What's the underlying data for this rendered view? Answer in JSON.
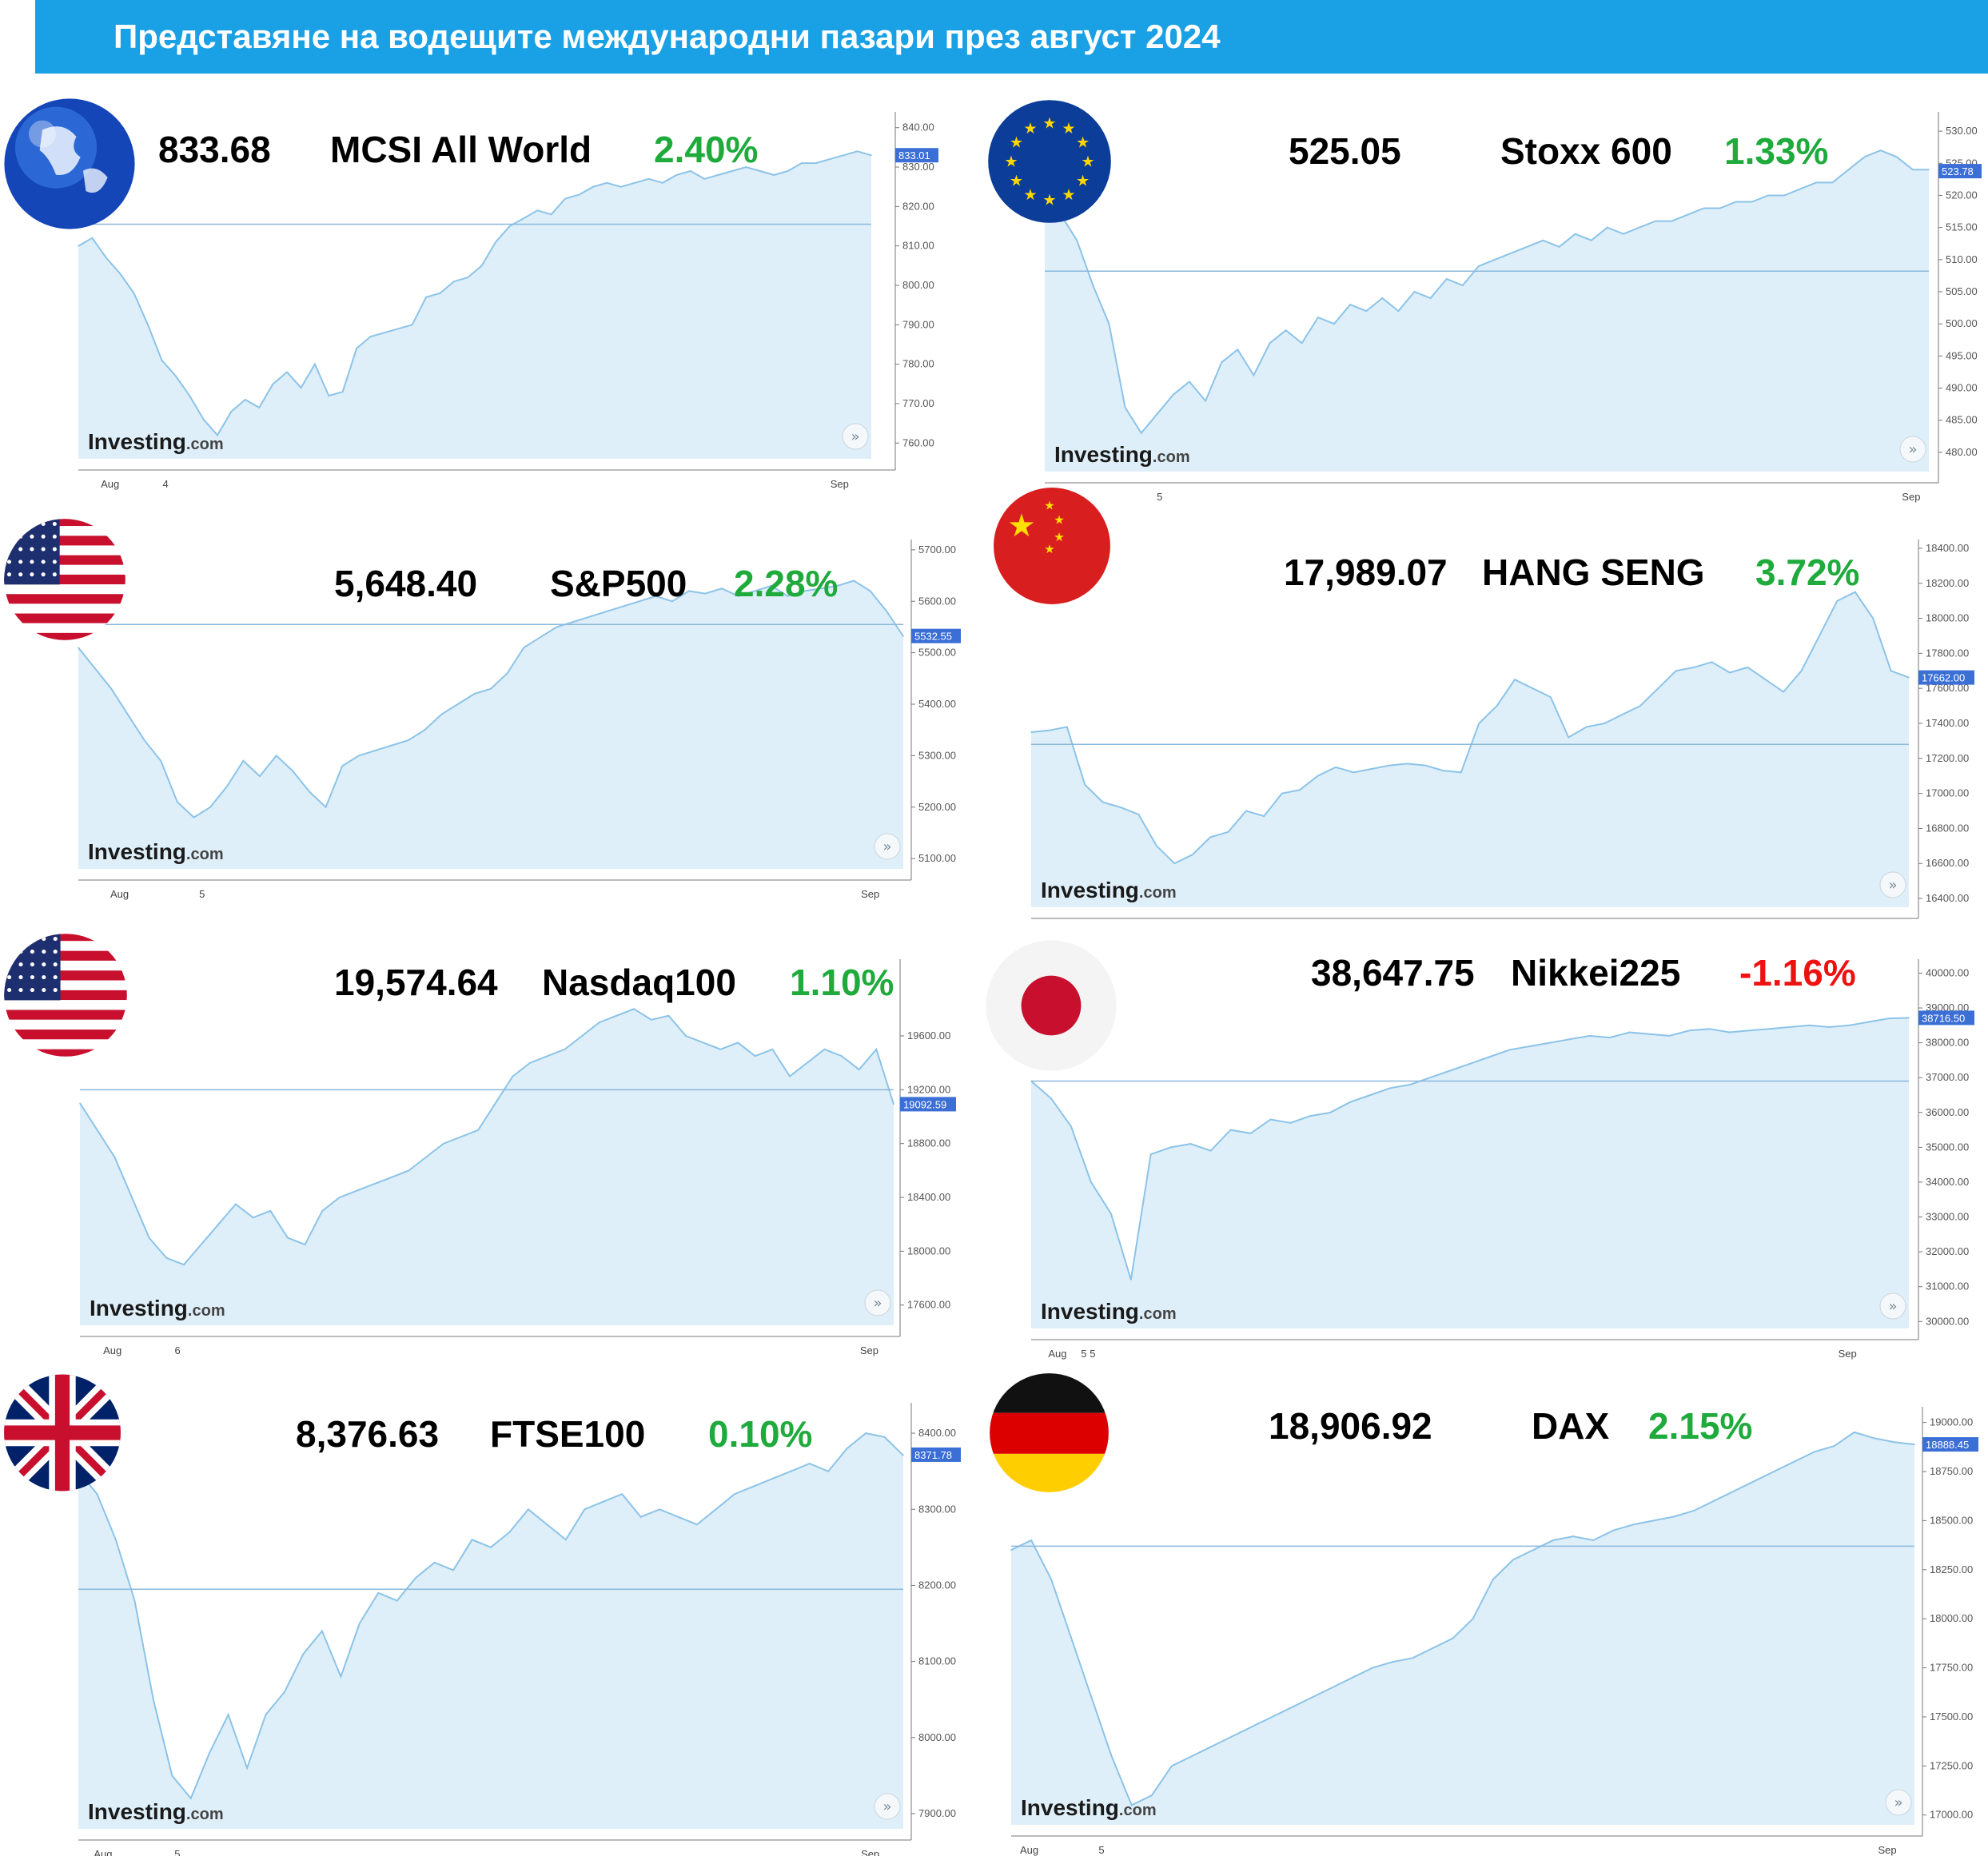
{
  "title": "Представяне на водещите международни пазари през август 2024",
  "source_logo": "Investing.com",
  "colors": {
    "title_bar": "#1aa0e4",
    "positive": "#1faa3c",
    "negative": "#ee1111",
    "area_fill": "#deeff9",
    "line": "#8cc3e8",
    "ref_line": "#8bb8dc",
    "last_box": "#3b6fd6"
  },
  "markets": [
    {
      "id": "msci",
      "flag": "globe-icon",
      "value": "833.68",
      "name": "MCSI All World",
      "change": "2.40%",
      "last_label": "833.01",
      "x_labels": [
        "Aug",
        "4",
        "Sep"
      ],
      "chart_data": {
        "type": "area",
        "y_ticks": [
          840,
          830,
          820,
          810,
          800,
          790,
          780,
          770,
          760
        ],
        "ylim": [
          756,
          844
        ],
        "reference": 815.5,
        "last": 833.01,
        "values": [
          810,
          812,
          807,
          803,
          798,
          790,
          781,
          777,
          772,
          766,
          762,
          768,
          771,
          769,
          775,
          778,
          774,
          780,
          772,
          773,
          784,
          787,
          788,
          789,
          790,
          797,
          798,
          801,
          802,
          805,
          811,
          815,
          817,
          819,
          818,
          822,
          823,
          825,
          826,
          825,
          826,
          827,
          826,
          828,
          829,
          827,
          828,
          829,
          830,
          829,
          828,
          829,
          831,
          831,
          832,
          833,
          834,
          833
        ]
      }
    },
    {
      "id": "stoxx",
      "flag": "eu-flag-icon",
      "value": "525.05",
      "name": "Stoxx 600",
      "change": "1.33%",
      "last_label": "523.78",
      "x_labels": [
        "5",
        "Sep"
      ],
      "chart_data": {
        "type": "area",
        "y_ticks": [
          530,
          525,
          520,
          515,
          510,
          505,
          500,
          495,
          490,
          485,
          480
        ],
        "ylim": [
          477,
          533
        ],
        "reference": 508.2,
        "last": 523.78,
        "values": [
          519,
          517,
          513,
          506,
          500,
          487,
          483,
          486,
          489,
          491,
          488,
          494,
          496,
          492,
          497,
          499,
          497,
          501,
          500,
          503,
          502,
          504,
          502,
          505,
          504,
          507,
          506,
          509,
          510,
          511,
          512,
          513,
          512,
          514,
          513,
          515,
          514,
          515,
          516,
          516,
          517,
          518,
          518,
          519,
          519,
          520,
          520,
          521,
          522,
          522,
          524,
          526,
          527,
          526,
          524,
          524
        ]
      }
    },
    {
      "id": "sp500",
      "flag": "us-flag-icon",
      "value": "5,648.40",
      "name": "S&P500",
      "change": "2.28%",
      "last_label": "5532.55",
      "x_labels": [
        "Aug",
        "5",
        "Sep"
      ],
      "chart_data": {
        "type": "area",
        "y_ticks": [
          5700,
          5600,
          5500,
          5400,
          5300,
          5200,
          5100
        ],
        "ylim": [
          5080,
          5720
        ],
        "reference": 5555,
        "last": 5532.55,
        "values": [
          5510,
          5470,
          5430,
          5380,
          5330,
          5290,
          5210,
          5180,
          5200,
          5240,
          5290,
          5260,
          5300,
          5270,
          5230,
          5200,
          5280,
          5300,
          5310,
          5320,
          5330,
          5350,
          5380,
          5400,
          5420,
          5430,
          5460,
          5510,
          5530,
          5550,
          5560,
          5570,
          5580,
          5590,
          5600,
          5610,
          5600,
          5620,
          5615,
          5625,
          5610,
          5620,
          5630,
          5610,
          5620,
          5625,
          5630,
          5640,
          5620,
          5580,
          5532
        ]
      }
    },
    {
      "id": "hangseng",
      "flag": "china-flag-icon",
      "value": "17,989.07",
      "name": "HANG SENG",
      "change": "3.72%",
      "last_label": "17662.00",
      "x_labels": [],
      "chart_data": {
        "type": "area",
        "y_ticks": [
          18400,
          18200,
          18000,
          17800,
          17600,
          17400,
          17200,
          17000,
          16800,
          16600,
          16400
        ],
        "ylim": [
          16350,
          18450
        ],
        "reference": 17280,
        "last": 17662.0,
        "values": [
          17350,
          17360,
          17380,
          17050,
          16950,
          16920,
          16880,
          16700,
          16600,
          16650,
          16750,
          16780,
          16900,
          16870,
          17000,
          17020,
          17100,
          17150,
          17120,
          17140,
          17160,
          17170,
          17160,
          17130,
          17120,
          17400,
          17500,
          17650,
          17600,
          17550,
          17320,
          17380,
          17400,
          17450,
          17500,
          17600,
          17700,
          17720,
          17750,
          17690,
          17720,
          17650,
          17580,
          17700,
          17900,
          18100,
          18150,
          18000,
          17700,
          17662
        ]
      }
    },
    {
      "id": "nasdaq",
      "flag": "us-flag-icon",
      "value": "19,574.64",
      "name": "Nasdaq100",
      "change": "1.10%",
      "last_label": "19092.59",
      "x_labels": [
        "Aug",
        "6",
        "Sep"
      ],
      "chart_data": {
        "type": "area",
        "y_ticks": [
          19600,
          19200,
          18800,
          18400,
          18000,
          17600
        ],
        "ylim": [
          17450,
          20170
        ],
        "reference": 19200,
        "last": 19092.59,
        "values": [
          19100,
          18900,
          18700,
          18400,
          18100,
          17950,
          17900,
          18050,
          18200,
          18350,
          18250,
          18300,
          18100,
          18050,
          18300,
          18400,
          18450,
          18500,
          18550,
          18600,
          18700,
          18800,
          18850,
          18900,
          19100,
          19300,
          19400,
          19450,
          19500,
          19600,
          19700,
          19750,
          19800,
          19720,
          19750,
          19600,
          19550,
          19500,
          19550,
          19450,
          19500,
          19300,
          19400,
          19500,
          19450,
          19350,
          19500,
          19092
        ]
      }
    },
    {
      "id": "nikkei",
      "flag": "japan-flag-icon",
      "value": "38,647.75",
      "name": "Nikkei225",
      "change": "-1.16%",
      "last_label": "38716.50",
      "x_labels": [
        "5",
        "Aug",
        "5",
        "Sep"
      ],
      "chart_data": {
        "type": "area",
        "y_ticks": [
          40000,
          39000,
          38000,
          37000,
          36000,
          35000,
          34000,
          33000,
          32000,
          31000,
          30000
        ],
        "ylim": [
          29800,
          40400
        ],
        "reference": 36900,
        "last": 38716.5,
        "values": [
          36900,
          36400,
          35600,
          34000,
          33100,
          31200,
          34800,
          35000,
          35100,
          34900,
          35500,
          35400,
          35800,
          35700,
          35900,
          36000,
          36300,
          36500,
          36700,
          36800,
          37000,
          37200,
          37400,
          37600,
          37800,
          37900,
          38000,
          38100,
          38200,
          38150,
          38300,
          38250,
          38200,
          38350,
          38400,
          38300,
          38350,
          38400,
          38450,
          38500,
          38450,
          38500,
          38600,
          38700,
          38716
        ]
      }
    },
    {
      "id": "ftse",
      "flag": "uk-flag-icon",
      "value": "8,376.63",
      "name": "FTSE100",
      "change": "0.10%",
      "last_label": "8371.78",
      "x_labels": [
        "Aug",
        "5",
        "Sep"
      ],
      "chart_data": {
        "type": "area",
        "y_ticks": [
          8400,
          8300,
          8200,
          8100,
          8000,
          7900
        ],
        "ylim": [
          7880,
          8440
        ],
        "reference": 8195,
        "last": 8371.78,
        "values": [
          8350,
          8320,
          8260,
          8180,
          8050,
          7950,
          7920,
          7980,
          8030,
          7960,
          8030,
          8060,
          8110,
          8140,
          8080,
          8150,
          8190,
          8180,
          8210,
          8230,
          8220,
          8260,
          8250,
          8270,
          8300,
          8280,
          8260,
          8300,
          8310,
          8320,
          8290,
          8300,
          8290,
          8280,
          8300,
          8320,
          8330,
          8340,
          8350,
          8360,
          8350,
          8380,
          8400,
          8395,
          8371
        ]
      }
    },
    {
      "id": "dax",
      "flag": "germany-flag-icon",
      "value": "18,906.92",
      "name": "DAX",
      "change": "2.15%",
      "last_label": "18888.45",
      "x_labels": [
        "Aug",
        "5",
        "Sep"
      ],
      "chart_data": {
        "type": "area",
        "y_ticks": [
          19000,
          18750,
          18500,
          18250,
          18000,
          17750,
          17500,
          17250,
          17000
        ],
        "ylim": [
          16950,
          19080
        ],
        "reference": 18370,
        "last": 18888.45,
        "values": [
          18350,
          18400,
          18200,
          17900,
          17600,
          17300,
          17050,
          17100,
          17250,
          17300,
          17350,
          17400,
          17450,
          17500,
          17550,
          17600,
          17650,
          17700,
          17750,
          17780,
          17800,
          17850,
          17900,
          18000,
          18200,
          18300,
          18350,
          18400,
          18420,
          18400,
          18450,
          18480,
          18500,
          18520,
          18550,
          18600,
          18650,
          18700,
          18750,
          18800,
          18850,
          18880,
          18950,
          18920,
          18900,
          18888
        ]
      }
    }
  ]
}
